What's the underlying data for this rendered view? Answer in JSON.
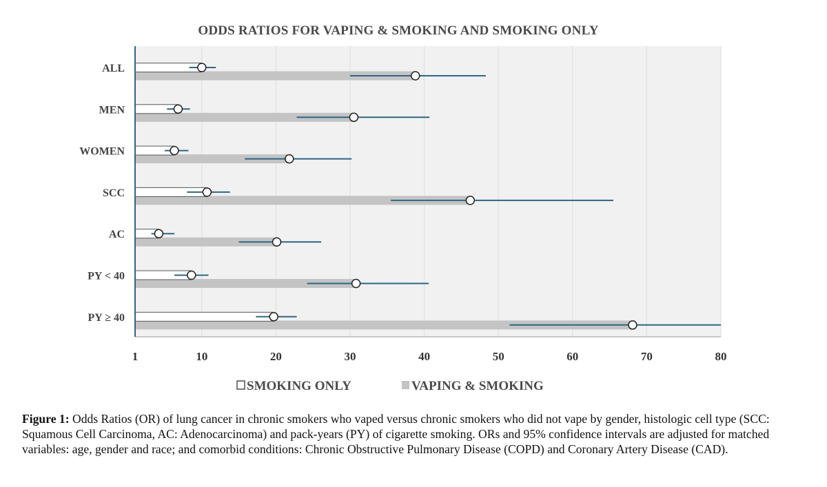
{
  "chart_data": {
    "type": "bar",
    "orientation": "horizontal",
    "title": "ODDS RATIOS FOR VAPING & SMOKING AND SMOKING ONLY",
    "xlim": [
      1,
      80
    ],
    "x_ticks": [
      "1",
      "10",
      "20",
      "30",
      "40",
      "50",
      "60",
      "70",
      "80"
    ],
    "x_tick_values": [
      1,
      10,
      20,
      30,
      40,
      50,
      60,
      70,
      80
    ],
    "categories": [
      "ALL",
      "MEN",
      "WOMEN",
      "SCC",
      "AC",
      "PY < 40",
      "PY ≥ 40"
    ],
    "series": [
      {
        "name": "SMOKING ONLY",
        "legend_label": "SMOKING ONLY",
        "values": [
          10,
          6.8,
          6.3,
          10.7,
          4.2,
          8.6,
          19.7
        ],
        "ci_low": [
          8.3,
          5.3,
          5,
          8,
          3.2,
          6.3,
          17.3
        ],
        "ci_high": [
          11.9,
          8.4,
          8.2,
          13.8,
          6.3,
          10.9,
          22.8
        ],
        "color": "#ffffff"
      },
      {
        "name": "VAPING & SMOKING",
        "legend_label": "VAPING & SMOKING",
        "values": [
          38.8,
          30.5,
          21.8,
          46.2,
          20.1,
          30.8,
          68.1
        ],
        "ci_low": [
          30,
          22.8,
          15.8,
          35.5,
          15,
          24.2,
          51.5
        ],
        "ci_high": [
          48.3,
          40.7,
          30.2,
          65.5,
          26.1,
          40.6,
          80
        ],
        "color": "#c4c4c4"
      }
    ],
    "grid": true,
    "legend": "bottom",
    "colors": {
      "ci_line": "#2d6682",
      "plot_bg": "#f1f1f1",
      "grid": "#dddddd",
      "axis": "#2d6682"
    }
  },
  "caption": {
    "label": "Figure 1:",
    "text": "Odds Ratios (OR) of lung cancer in chronic smokers who vaped versus chronic smokers who did not vape by gender, histologic cell type (SCC: Squamous Cell Carcinoma, AC: Adenocarcinoma) and pack-years (PY) of cigarette smoking.   ORs and 95% confidence intervals are adjusted for matched variables: age, gender and race; and comorbid conditions: Chronic Obstructive Pulmonary Disease (COPD) and Coronary Artery Disease (CAD)."
  }
}
